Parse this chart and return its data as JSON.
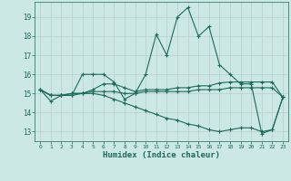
{
  "xlabel": "Humidex (Indice chaleur)",
  "bg_color": "#cce8e4",
  "grid_color": "#b8ceca",
  "line_color": "#1a6b5a",
  "ylim": [
    12.5,
    19.8
  ],
  "xlim": [
    -0.5,
    23.5
  ],
  "yticks": [
    13,
    14,
    15,
    16,
    17,
    18,
    19
  ],
  "xticks": [
    0,
    1,
    2,
    3,
    4,
    5,
    6,
    7,
    8,
    9,
    10,
    11,
    12,
    13,
    14,
    15,
    16,
    17,
    18,
    19,
    20,
    21,
    22,
    23
  ],
  "series": [
    [
      15.2,
      14.6,
      14.9,
      14.9,
      16.0,
      16.0,
      16.0,
      15.6,
      14.7,
      15.0,
      16.0,
      18.1,
      17.0,
      19.0,
      19.5,
      18.0,
      18.5,
      16.5,
      16.0,
      15.5,
      15.5,
      12.9,
      13.1,
      14.8
    ],
    [
      15.2,
      14.9,
      14.9,
      15.0,
      15.0,
      15.2,
      15.5,
      15.5,
      15.3,
      15.1,
      15.2,
      15.2,
      15.2,
      15.3,
      15.3,
      15.4,
      15.4,
      15.55,
      15.6,
      15.6,
      15.6,
      15.6,
      15.6,
      14.8
    ],
    [
      15.2,
      14.9,
      14.9,
      15.0,
      15.0,
      15.1,
      15.1,
      15.1,
      15.0,
      15.0,
      15.1,
      15.1,
      15.1,
      15.1,
      15.1,
      15.2,
      15.2,
      15.2,
      15.3,
      15.3,
      15.3,
      15.3,
      15.3,
      14.8
    ],
    [
      15.2,
      14.9,
      14.9,
      14.9,
      15.0,
      15.0,
      14.9,
      14.7,
      14.5,
      14.3,
      14.1,
      13.9,
      13.7,
      13.6,
      13.4,
      13.3,
      13.1,
      13.0,
      13.1,
      13.2,
      13.2,
      13.0,
      13.1,
      14.8
    ]
  ]
}
